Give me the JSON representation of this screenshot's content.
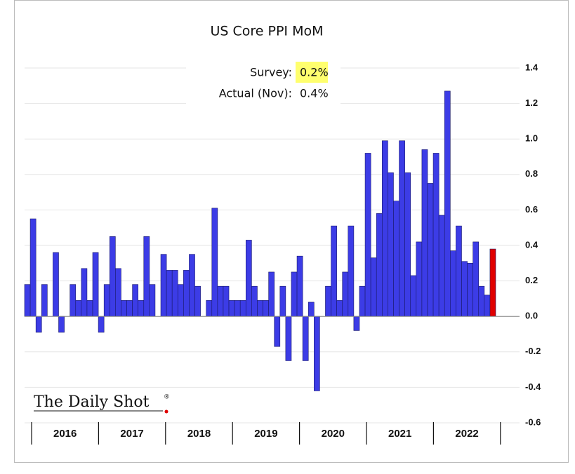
{
  "chart_data": {
    "type": "bar",
    "title": "US Core PPI MoM",
    "annotations": [
      {
        "label": "Survey:",
        "value": "0.2%"
      },
      {
        "label": "Actual (Nov):",
        "value": "0.4%"
      }
    ],
    "watermark": "The Daily Shot",
    "watermark_mark": "®",
    "years": [
      "2016",
      "2017",
      "2018",
      "2019",
      "2020",
      "2021",
      "2022"
    ],
    "categories": [
      null,
      null,
      null,
      null,
      null,
      null,
      null,
      null,
      null,
      null,
      null,
      null,
      null,
      null,
      null,
      null,
      null,
      null,
      null,
      null,
      null,
      null,
      null,
      null,
      null,
      null,
      null,
      null,
      null,
      null,
      null,
      null,
      null,
      null,
      null,
      null,
      null,
      null,
      null,
      null,
      null,
      null,
      null,
      null,
      null,
      null,
      null,
      null,
      null,
      null,
      null,
      null,
      null,
      null,
      null,
      null,
      null,
      null,
      null,
      null,
      null,
      null,
      null,
      null,
      null,
      null,
      null,
      null,
      null,
      null,
      null,
      null,
      null,
      null,
      null,
      null,
      null,
      null,
      null,
      null,
      null,
      null,
      null
    ],
    "values": [
      0.18,
      0.55,
      -0.09,
      0.18,
      0.0,
      0.36,
      -0.09,
      0.0,
      0.18,
      0.09,
      0.27,
      0.09,
      0.36,
      -0.09,
      0.18,
      0.45,
      0.27,
      0.09,
      0.09,
      0.18,
      0.09,
      0.45,
      0.18,
      0.0,
      0.35,
      0.26,
      0.26,
      0.18,
      0.26,
      0.35,
      0.17,
      0.0,
      0.09,
      0.61,
      0.17,
      0.17,
      0.09,
      0.09,
      0.09,
      0.43,
      0.17,
      0.09,
      0.09,
      0.25,
      -0.17,
      0.17,
      -0.25,
      0.25,
      0.34,
      -0.25,
      0.08,
      -0.42,
      0.0,
      0.17,
      0.51,
      0.09,
      0.25,
      0.51,
      -0.08,
      0.17,
      0.92,
      0.33,
      0.58,
      0.99,
      0.81,
      0.65,
      0.99,
      0.81,
      0.23,
      0.42,
      0.94,
      0.75,
      0.92,
      0.57,
      1.27,
      0.37,
      0.51,
      0.31,
      0.3,
      0.42,
      0.17,
      0.12,
      0.38
    ],
    "color": "#3c3ce6",
    "last_color": "#e00000",
    "ylim": [
      -0.6,
      1.4
    ],
    "yticks": [
      {
        "value": -0.6,
        "label": "-0.6"
      },
      {
        "value": -0.4,
        "label": "-0.4"
      },
      {
        "value": -0.2,
        "label": "-0.2"
      },
      {
        "value": 0,
        "label": "0.0"
      },
      {
        "value": 0.2,
        "label": "0.2"
      },
      {
        "value": 0.4,
        "label": "0.4"
      },
      {
        "value": 0.6,
        "label": "0.6"
      },
      {
        "value": 0.8,
        "label": "0.8"
      },
      {
        "value": 1.0,
        "label": "1.0"
      },
      {
        "value": 1.2,
        "label": "1.2"
      },
      {
        "value": 1.4,
        "label": "1.4"
      }
    ],
    "grid": true,
    "y_axis_side": "right"
  }
}
